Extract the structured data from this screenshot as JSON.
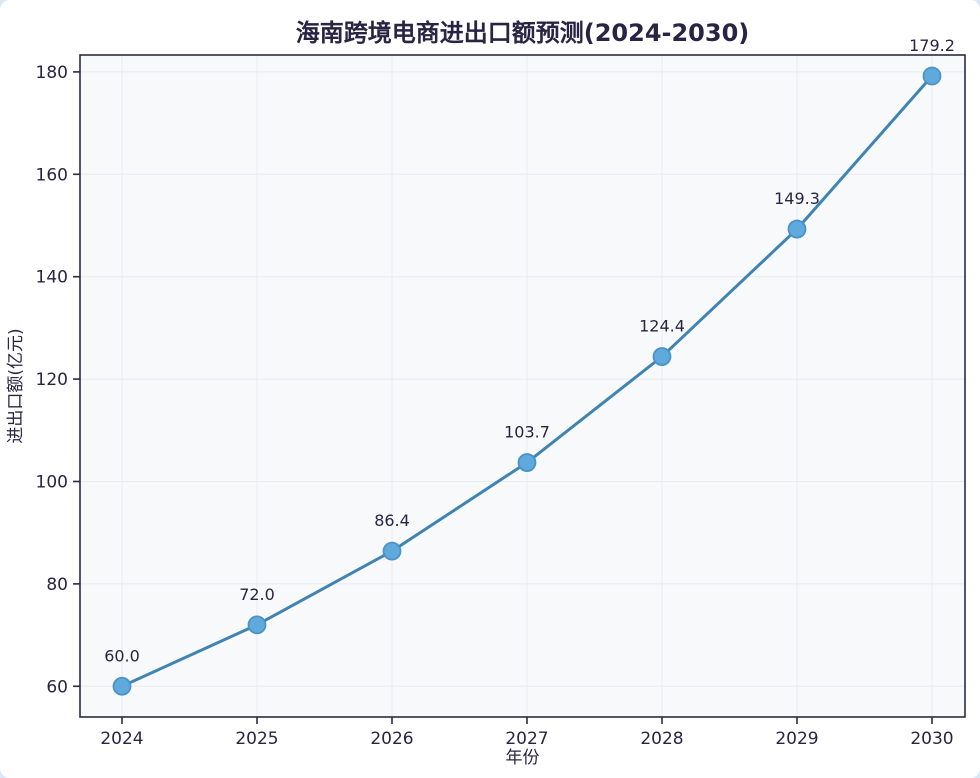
{
  "chart_data": {
    "type": "line",
    "title": "海南跨境电商进出口额预测(2024-2030)",
    "xlabel": "年份",
    "ylabel": "进出口额(亿元)",
    "categories": [
      "2024",
      "2025",
      "2026",
      "2027",
      "2028",
      "2029",
      "2030"
    ],
    "values": [
      60.0,
      72.0,
      86.4,
      103.7,
      124.4,
      149.3,
      179.2
    ],
    "point_labels": [
      "60.0",
      "72.0",
      "86.4",
      "103.7",
      "124.4",
      "149.3",
      "179.2"
    ],
    "yticks": [
      60,
      80,
      100,
      120,
      140,
      160,
      180
    ],
    "ylim": [
      54,
      183.3
    ],
    "grid": true,
    "legend_position": "none",
    "colors": {
      "line": "#3f84b2",
      "marker_fill": "#5fa9dd",
      "marker_edge": "#4a93c8",
      "text": "#2a2444",
      "grid": "#e7eaf0",
      "spine": "#2e2a45",
      "plot_background": "#f8f9fb",
      "figure_background": "#ffffff",
      "page_background": "#d9e7f7"
    }
  }
}
